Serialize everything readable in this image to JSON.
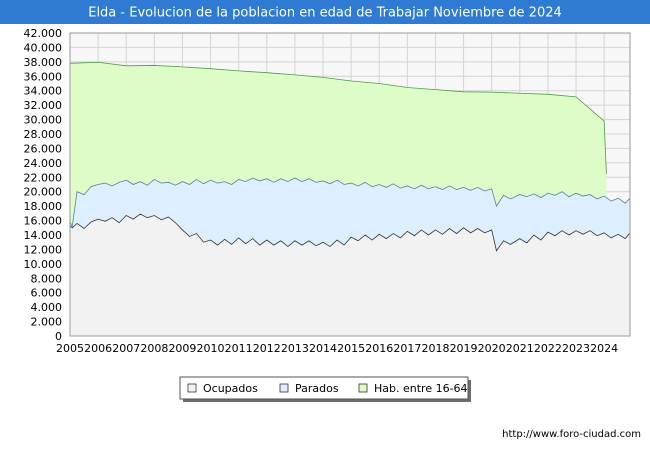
{
  "chart_data": {
    "type": "area",
    "title": "Elda - Evolucion de la poblacion en edad de Trabajar Noviembre de 2024",
    "xlabel": "",
    "ylabel": "",
    "xlim": [
      2005,
      2024.92
    ],
    "ylim": [
      0,
      42000
    ],
    "grid": true,
    "legend_position": "bottom-center",
    "y_ticks": [
      0,
      2000,
      4000,
      6000,
      8000,
      10000,
      12000,
      14000,
      16000,
      18000,
      20000,
      22000,
      24000,
      26000,
      28000,
      30000,
      32000,
      34000,
      36000,
      38000,
      40000,
      42000
    ],
    "y_tick_labels": [
      "0",
      "2.000",
      "4.000",
      "6.000",
      "8.000",
      "10.000",
      "12.000",
      "14.000",
      "16.000",
      "18.000",
      "20.000",
      "22.000",
      "24.000",
      "26.000",
      "28.000",
      "30.000",
      "32.000",
      "34.000",
      "36.000",
      "38.000",
      "40.000",
      "42.000"
    ],
    "x_ticks": [
      2005,
      2006,
      2007,
      2008,
      2009,
      2010,
      2011,
      2012,
      2013,
      2014,
      2015,
      2016,
      2017,
      2018,
      2019,
      2020,
      2021,
      2022,
      2023,
      2024
    ],
    "x_tick_labels": [
      "2005",
      "2006",
      "2007",
      "2008",
      "2009",
      "2010",
      "2011",
      "2012",
      "2013",
      "2014",
      "2015",
      "2016",
      "2017",
      "2018",
      "2019",
      "2020",
      "2021",
      "2022",
      "2023",
      "2024"
    ],
    "series": [
      {
        "name": "Hab. entre 16-64",
        "fill": "#ddfcc8",
        "stroke": "#4e9b43",
        "x": [
          2005,
          2006,
          2007,
          2008,
          2009,
          2010,
          2011,
          2012,
          2013,
          2014,
          2015,
          2016,
          2017,
          2018,
          2019,
          2020,
          2021,
          2022,
          2023,
          2024,
          2024.08
        ],
        "values": [
          37800,
          37950,
          37450,
          37500,
          37300,
          37050,
          36750,
          36500,
          36200,
          35850,
          35350,
          35000,
          34450,
          34150,
          33850,
          33800,
          33650,
          33500,
          33150,
          29800,
          22500
        ]
      },
      {
        "name": "Parados",
        "fill": "#ddeeff",
        "stroke": "#5b7f9f",
        "x": [
          2005,
          2005.08,
          2005.25,
          2005.5,
          2005.75,
          2006,
          2006.25,
          2006.5,
          2006.75,
          2007,
          2007.25,
          2007.5,
          2007.75,
          2008,
          2008.25,
          2008.5,
          2008.75,
          2009,
          2009.25,
          2009.5,
          2009.75,
          2010,
          2010.25,
          2010.5,
          2010.75,
          2011,
          2011.25,
          2011.5,
          2011.75,
          2012,
          2012.25,
          2012.5,
          2012.75,
          2013,
          2013.25,
          2013.5,
          2013.75,
          2014,
          2014.25,
          2014.5,
          2014.75,
          2015,
          2015.25,
          2015.5,
          2015.75,
          2016,
          2016.25,
          2016.5,
          2016.75,
          2017,
          2017.25,
          2017.5,
          2017.75,
          2018,
          2018.25,
          2018.5,
          2018.75,
          2019,
          2019.25,
          2019.5,
          2019.75,
          2020,
          2020.17,
          2020.42,
          2020.67,
          2021,
          2021.25,
          2021.5,
          2021.75,
          2022,
          2022.25,
          2022.5,
          2022.75,
          2023,
          2023.25,
          2023.5,
          2023.75,
          2024,
          2024.25,
          2024.5,
          2024.75,
          2024.92
        ],
        "values": [
          15800,
          15200,
          20000,
          19600,
          20700,
          21000,
          21200,
          20800,
          21300,
          21600,
          21000,
          21400,
          20900,
          21700,
          21200,
          21300,
          20900,
          21400,
          21000,
          21700,
          21100,
          21600,
          21200,
          21400,
          21000,
          21700,
          21400,
          21900,
          21500,
          21800,
          21300,
          21800,
          21400,
          21900,
          21400,
          21800,
          21300,
          21500,
          21100,
          21600,
          21000,
          21200,
          20800,
          21300,
          20700,
          21000,
          20600,
          21100,
          20500,
          20800,
          20400,
          20900,
          20400,
          20700,
          20300,
          20800,
          20300,
          20600,
          20200,
          20600,
          20100,
          20400,
          18000,
          19500,
          19000,
          19600,
          19300,
          19700,
          19200,
          19800,
          19500,
          20000,
          19300,
          19800,
          19400,
          19600,
          19000,
          19400,
          18700,
          19100,
          18400,
          19100
        ]
      },
      {
        "name": "Ocupados",
        "fill": "#f2f2f2",
        "stroke": "#333333",
        "x": [
          2005,
          2005.08,
          2005.25,
          2005.5,
          2005.75,
          2006,
          2006.25,
          2006.5,
          2006.75,
          2007,
          2007.25,
          2007.5,
          2007.75,
          2008,
          2008.25,
          2008.5,
          2008.75,
          2009,
          2009.25,
          2009.5,
          2009.75,
          2010,
          2010.25,
          2010.5,
          2010.75,
          2011,
          2011.25,
          2011.5,
          2011.75,
          2012,
          2012.25,
          2012.5,
          2012.75,
          2013,
          2013.25,
          2013.5,
          2013.75,
          2014,
          2014.25,
          2014.5,
          2014.75,
          2015,
          2015.25,
          2015.5,
          2015.75,
          2016,
          2016.25,
          2016.5,
          2016.75,
          2017,
          2017.25,
          2017.5,
          2017.75,
          2018,
          2018.25,
          2018.5,
          2018.75,
          2019,
          2019.25,
          2019.5,
          2019.75,
          2020,
          2020.17,
          2020.42,
          2020.67,
          2021,
          2021.25,
          2021.5,
          2021.75,
          2022,
          2022.25,
          2022.5,
          2022.75,
          2023,
          2023.25,
          2023.5,
          2023.75,
          2024,
          2024.25,
          2024.5,
          2024.75,
          2024.92
        ],
        "values": [
          15300,
          15000,
          15600,
          14900,
          15800,
          16200,
          15900,
          16400,
          15700,
          16700,
          16200,
          16900,
          16400,
          16700,
          16100,
          16500,
          15700,
          14700,
          13800,
          14200,
          13000,
          13300,
          12600,
          13400,
          12700,
          13600,
          12800,
          13500,
          12600,
          13300,
          12600,
          13200,
          12400,
          13200,
          12600,
          13200,
          12500,
          13000,
          12400,
          13300,
          12600,
          13700,
          13200,
          14000,
          13300,
          14100,
          13500,
          14200,
          13600,
          14500,
          13900,
          14700,
          14000,
          14700,
          14100,
          14900,
          14200,
          15000,
          14300,
          14900,
          14300,
          14700,
          11800,
          13200,
          12700,
          13500,
          12900,
          14000,
          13300,
          14400,
          13900,
          14600,
          14000,
          14600,
          14100,
          14600,
          13900,
          14300,
          13600,
          14100,
          13500,
          14300
        ]
      }
    ]
  },
  "footer": {
    "url": "http://www.foro-ciudad.com"
  }
}
